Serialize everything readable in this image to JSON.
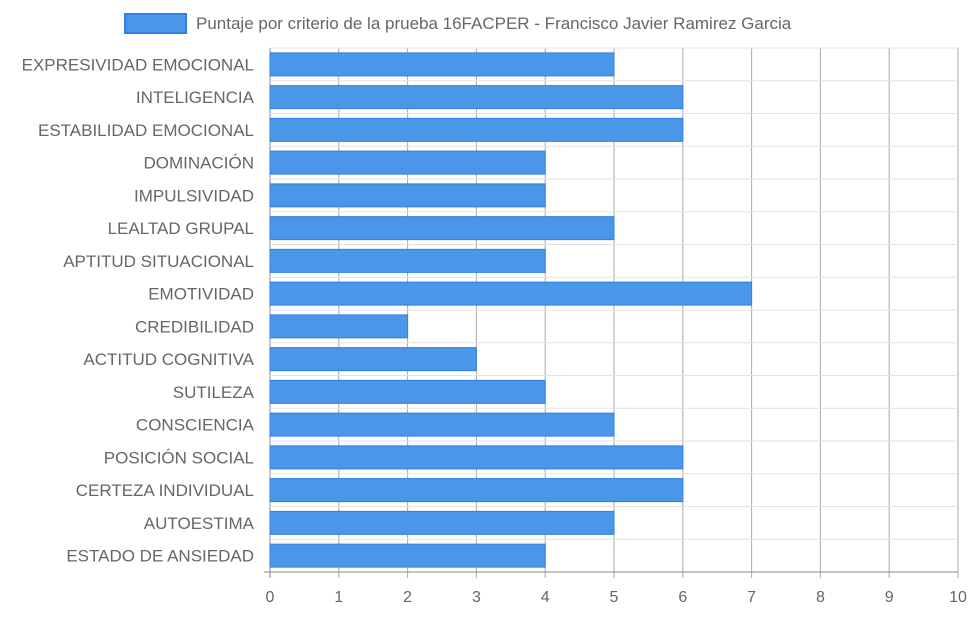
{
  "chart_data": {
    "type": "bar",
    "orientation": "horizontal",
    "categories": [
      "EXPRESIVIDAD EMOCIONAL",
      "INTELIGENCIA",
      "ESTABILIDAD EMOCIONAL",
      "DOMINACIÓN",
      "IMPULSIVIDAD",
      "LEALTAD GRUPAL",
      "APTITUD SITUACIONAL",
      "EMOTIVIDAD",
      "CREDIBILIDAD",
      "ACTITUD COGNITIVA",
      "SUTILEZA",
      "CONSCIENCIA",
      "POSICIÓN SOCIAL",
      "CERTEZA INDIVIDUAL",
      "AUTOESTIMA",
      "ESTADO DE ANSIEDAD"
    ],
    "series": [
      {
        "name": "Puntaje por criterio de la prueba 16FACPER - Francisco Javier Ramirez Garcia",
        "values": [
          5,
          6,
          6,
          4,
          4,
          5,
          4,
          7,
          2,
          3,
          4,
          5,
          6,
          6,
          5,
          4
        ]
      }
    ],
    "xlim": [
      0,
      10
    ],
    "xticks": [
      "0",
      "1",
      "2",
      "3",
      "4",
      "5",
      "6",
      "7",
      "8",
      "9",
      "10"
    ],
    "grid": true,
    "legend_position": "top-center",
    "colors": {
      "bar_fill": "#4a97ea",
      "bar_stroke": "#2f80e0",
      "grid": "#bdbdbd",
      "text": "#666666"
    }
  }
}
